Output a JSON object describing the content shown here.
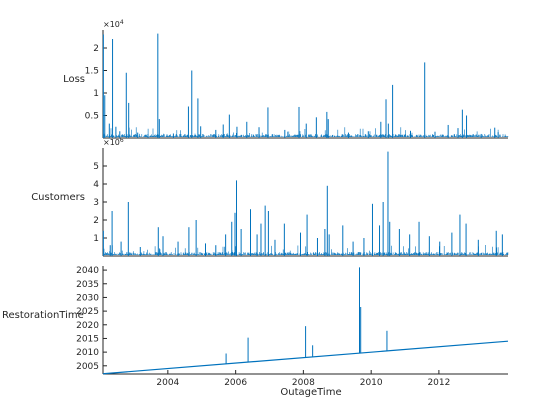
{
  "chart_data": {
    "type": "stacked-line",
    "xlabel": "OutageTime",
    "x_range": [
      "2002-02-01",
      "2014-01-15"
    ],
    "x_ticks": [
      "2004",
      "2006",
      "2008",
      "2010",
      "2012"
    ],
    "series_color": "#0072BD",
    "panels": [
      {
        "name": "loss",
        "ylabel": "Loss",
        "ylim": [
          0,
          24000
        ],
        "exponent_label": "×10",
        "exponent_power": "4",
        "y_ticks": [
          5000,
          10000,
          15000,
          20000
        ],
        "y_tick_labels": [
          "0.5",
          "1",
          "1.5",
          "2"
        ],
        "spikes": [
          {
            "x": "2002-02-05",
            "y": 23000
          },
          {
            "x": "2002-02-20",
            "y": 9500
          },
          {
            "x": "2002-04-10",
            "y": 3200
          },
          {
            "x": "2002-05-15",
            "y": 22000
          },
          {
            "x": "2002-06-20",
            "y": 2500
          },
          {
            "x": "2002-08-01",
            "y": 1500
          },
          {
            "x": "2002-10-10",
            "y": 14500
          },
          {
            "x": "2002-11-05",
            "y": 7800
          },
          {
            "x": "2003-02-10",
            "y": 1200
          },
          {
            "x": "2003-06-01",
            "y": 900
          },
          {
            "x": "2003-09-15",
            "y": 23200
          },
          {
            "x": "2003-10-01",
            "y": 4200
          },
          {
            "x": "2004-03-01",
            "y": 1000
          },
          {
            "x": "2004-08-10",
            "y": 7000
          },
          {
            "x": "2004-09-15",
            "y": 15000
          },
          {
            "x": "2004-11-20",
            "y": 8800
          },
          {
            "x": "2004-12-20",
            "y": 2600
          },
          {
            "x": "2005-06-01",
            "y": 1800
          },
          {
            "x": "2005-08-20",
            "y": 3000
          },
          {
            "x": "2005-10-25",
            "y": 5200
          },
          {
            "x": "2006-01-15",
            "y": 2500
          },
          {
            "x": "2006-05-01",
            "y": 3600
          },
          {
            "x": "2006-09-10",
            "y": 2400
          },
          {
            "x": "2006-12-15",
            "y": 6800
          },
          {
            "x": "2007-06-15",
            "y": 1800
          },
          {
            "x": "2007-11-15",
            "y": 6900
          },
          {
            "x": "2008-02-01",
            "y": 3200
          },
          {
            "x": "2008-05-20",
            "y": 4600
          },
          {
            "x": "2008-09-10",
            "y": 5800
          },
          {
            "x": "2008-09-25",
            "y": 4200
          },
          {
            "x": "2009-05-01",
            "y": 1200
          },
          {
            "x": "2009-12-01",
            "y": 1500
          },
          {
            "x": "2010-04-15",
            "y": 3600
          },
          {
            "x": "2010-06-10",
            "y": 8600
          },
          {
            "x": "2010-07-05",
            "y": 3200
          },
          {
            "x": "2010-08-20",
            "y": 11800
          },
          {
            "x": "2011-03-01",
            "y": 1600
          },
          {
            "x": "2011-08-01",
            "y": 16800
          },
          {
            "x": "2011-11-20",
            "y": 1400
          },
          {
            "x": "2012-04-10",
            "y": 2900
          },
          {
            "x": "2012-07-25",
            "y": 2200
          },
          {
            "x": "2012-09-10",
            "y": 6300
          },
          {
            "x": "2012-10-25",
            "y": 5000
          },
          {
            "x": "2013-04-01",
            "y": 900
          },
          {
            "x": "2013-08-25",
            "y": 2300
          },
          {
            "x": "2013-10-01",
            "y": 1300
          }
        ]
      },
      {
        "name": "customers",
        "ylabel": "Customers",
        "ylim": [
          0,
          6000000
        ],
        "exponent_label": "×10",
        "exponent_power": "6",
        "y_ticks": [
          1000000,
          2000000,
          3000000,
          4000000,
          5000000
        ],
        "y_tick_labels": [
          "1",
          "2",
          "3",
          "4",
          "5"
        ],
        "spikes": [
          {
            "x": "2002-02-05",
            "y": 1400000
          },
          {
            "x": "2002-04-20",
            "y": 600000
          },
          {
            "x": "2002-05-10",
            "y": 2500000
          },
          {
            "x": "2002-08-15",
            "y": 800000
          },
          {
            "x": "2002-11-01",
            "y": 3000000
          },
          {
            "x": "2003-03-10",
            "y": 500000
          },
          {
            "x": "2003-09-20",
            "y": 1600000
          },
          {
            "x": "2003-11-10",
            "y": 1100000
          },
          {
            "x": "2004-04-20",
            "y": 800000
          },
          {
            "x": "2004-08-15",
            "y": 1600000
          },
          {
            "x": "2004-11-01",
            "y": 2000000
          },
          {
            "x": "2005-02-10",
            "y": 700000
          },
          {
            "x": "2005-06-01",
            "y": 600000
          },
          {
            "x": "2005-09-15",
            "y": 1200000
          },
          {
            "x": "2005-11-20",
            "y": 1900000
          },
          {
            "x": "2005-12-25",
            "y": 2400000
          },
          {
            "x": "2006-01-10",
            "y": 4200000
          },
          {
            "x": "2006-03-01",
            "y": 1500000
          },
          {
            "x": "2006-06-10",
            "y": 2600000
          },
          {
            "x": "2006-08-20",
            "y": 1200000
          },
          {
            "x": "2006-10-01",
            "y": 1800000
          },
          {
            "x": "2006-11-15",
            "y": 2800000
          },
          {
            "x": "2006-12-20",
            "y": 2500000
          },
          {
            "x": "2007-03-01",
            "y": 900000
          },
          {
            "x": "2007-06-10",
            "y": 1800000
          },
          {
            "x": "2007-12-01",
            "y": 1300000
          },
          {
            "x": "2008-02-10",
            "y": 2300000
          },
          {
            "x": "2008-06-01",
            "y": 1000000
          },
          {
            "x": "2008-08-20",
            "y": 1500000
          },
          {
            "x": "2008-09-15",
            "y": 3900000
          },
          {
            "x": "2008-10-05",
            "y": 1200000
          },
          {
            "x": "2009-03-01",
            "y": 1700000
          },
          {
            "x": "2009-06-20",
            "y": 800000
          },
          {
            "x": "2009-10-15",
            "y": 1000000
          },
          {
            "x": "2010-01-15",
            "y": 2900000
          },
          {
            "x": "2010-04-01",
            "y": 1700000
          },
          {
            "x": "2010-05-10",
            "y": 3000000
          },
          {
            "x": "2010-07-01",
            "y": 5800000
          },
          {
            "x": "2010-07-20",
            "y": 1900000
          },
          {
            "x": "2010-11-01",
            "y": 1500000
          },
          {
            "x": "2011-02-20",
            "y": 1200000
          },
          {
            "x": "2011-06-01",
            "y": 1900000
          },
          {
            "x": "2011-09-20",
            "y": 1100000
          },
          {
            "x": "2012-01-10",
            "y": 800000
          },
          {
            "x": "2012-05-20",
            "y": 1300000
          },
          {
            "x": "2012-08-15",
            "y": 2300000
          },
          {
            "x": "2012-10-20",
            "y": 1800000
          },
          {
            "x": "2013-03-01",
            "y": 900000
          },
          {
            "x": "2013-09-10",
            "y": 1400000
          },
          {
            "x": "2013-11-15",
            "y": 1200000
          }
        ]
      },
      {
        "name": "restoration",
        "ylabel": "RestorationTime",
        "ylim": [
          2002,
          2041.5
        ],
        "y_ticks": [
          2005,
          2010,
          2015,
          2020,
          2025,
          2030,
          2035,
          2040
        ],
        "y_tick_labels": [
          "2005",
          "2010",
          "2015",
          "2020",
          "2025",
          "2030",
          "2035",
          "2040"
        ],
        "trend": [
          {
            "x": "2002-02-01",
            "y": 2002.1
          },
          {
            "x": "2014-01-15",
            "y": 2014.0
          }
        ],
        "spikes": [
          {
            "x": "2005-09-20",
            "y": 2009.5
          },
          {
            "x": "2006-05-15",
            "y": 2015.3
          },
          {
            "x": "2008-01-25",
            "y": 2019.5
          },
          {
            "x": "2008-04-10",
            "y": 2012.5
          },
          {
            "x": "2009-08-28",
            "y": 2041.0
          },
          {
            "x": "2009-09-10",
            "y": 2026.5
          },
          {
            "x": "2010-06-20",
            "y": 2017.8
          },
          {
            "x": "2010-12-01",
            "y": 2011.0
          }
        ]
      }
    ]
  }
}
